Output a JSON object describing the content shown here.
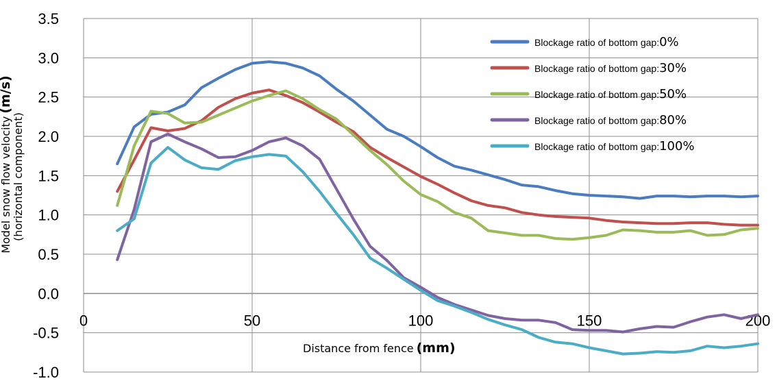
{
  "chart_data": {
    "type": "line",
    "title": "",
    "xlabel": "Distance from fence",
    "xlabel_unit": "(mm)",
    "ylabel": "Model snow flow velocity",
    "ylabel_line2": "(horizontal component)",
    "ylabel_unit": "(m/s)",
    "xlim": [
      0,
      200
    ],
    "ylim": [
      -1.0,
      3.5
    ],
    "xticks": [
      "0",
      "50",
      "100",
      "150",
      "200"
    ],
    "yticks": [
      "3.5",
      "3.0",
      "2.5",
      "2.0",
      "1.5",
      "1.0",
      "0.5",
      "0.0",
      "-0.5",
      "-1.0"
    ],
    "grid": true,
    "legend_position": "top-right",
    "x": [
      10,
      15,
      20,
      25,
      30,
      35,
      40,
      45,
      50,
      55,
      60,
      65,
      70,
      75,
      80,
      85,
      90,
      95,
      100,
      105,
      110,
      115,
      120,
      125,
      130,
      135,
      140,
      145,
      150,
      155,
      160,
      165,
      170,
      175,
      180,
      185,
      190,
      195,
      200
    ],
    "series": [
      {
        "name": "Blockage ratio of bottom gap:",
        "pct": "0%",
        "color": "#4a7cc0",
        "values": [
          1.65,
          2.12,
          2.28,
          2.31,
          2.4,
          2.62,
          2.74,
          2.85,
          2.93,
          2.95,
          2.93,
          2.87,
          2.77,
          2.6,
          2.45,
          2.27,
          2.09,
          2.0,
          1.87,
          1.73,
          1.62,
          1.57,
          1.51,
          1.45,
          1.38,
          1.36,
          1.31,
          1.27,
          1.25,
          1.24,
          1.23,
          1.21,
          1.24,
          1.24,
          1.23,
          1.24,
          1.24,
          1.23,
          1.24
        ]
      },
      {
        "name": "Blockage ratio of bottom gap:",
        "pct": "30%",
        "color": "#c0504d",
        "values": [
          1.3,
          1.7,
          2.11,
          2.07,
          2.1,
          2.2,
          2.37,
          2.48,
          2.55,
          2.59,
          2.52,
          2.43,
          2.31,
          2.18,
          2.06,
          1.86,
          1.73,
          1.61,
          1.49,
          1.39,
          1.28,
          1.18,
          1.12,
          1.09,
          1.03,
          1.0,
          0.98,
          0.97,
          0.96,
          0.93,
          0.91,
          0.9,
          0.89,
          0.89,
          0.9,
          0.9,
          0.88,
          0.87,
          0.87
        ]
      },
      {
        "name": "Blockage ratio of bottom gap:",
        "pct": "50%",
        "color": "#9bbb59",
        "values": [
          1.12,
          1.88,
          2.32,
          2.29,
          2.17,
          2.18,
          2.27,
          2.36,
          2.45,
          2.52,
          2.58,
          2.48,
          2.34,
          2.22,
          2.02,
          1.82,
          1.64,
          1.43,
          1.26,
          1.17,
          1.03,
          0.96,
          0.8,
          0.77,
          0.74,
          0.74,
          0.7,
          0.69,
          0.71,
          0.74,
          0.81,
          0.8,
          0.78,
          0.78,
          0.8,
          0.74,
          0.75,
          0.81,
          0.83
        ]
      },
      {
        "name": "Blockage ratio of bottom gap:",
        "pct": "80%",
        "color": "#8064a2",
        "values": [
          0.43,
          1.07,
          1.93,
          2.03,
          1.93,
          1.84,
          1.73,
          1.74,
          1.82,
          1.93,
          1.98,
          1.88,
          1.71,
          1.33,
          0.95,
          0.6,
          0.42,
          0.2,
          0.08,
          -0.05,
          -0.14,
          -0.21,
          -0.28,
          -0.32,
          -0.34,
          -0.34,
          -0.37,
          -0.46,
          -0.47,
          -0.47,
          -0.49,
          -0.45,
          -0.42,
          -0.43,
          -0.36,
          -0.3,
          -0.27,
          -0.32,
          -0.27
        ]
      },
      {
        "name": "Blockage ratio of bottom gap:",
        "pct": "100%",
        "color": "#4bacc6",
        "values": [
          0.8,
          0.95,
          1.66,
          1.86,
          1.7,
          1.6,
          1.58,
          1.69,
          1.74,
          1.77,
          1.75,
          1.55,
          1.3,
          1.02,
          0.75,
          0.45,
          0.32,
          0.18,
          0.04,
          -0.09,
          -0.16,
          -0.24,
          -0.33,
          -0.4,
          -0.46,
          -0.56,
          -0.62,
          -0.64,
          -0.69,
          -0.73,
          -0.77,
          -0.76,
          -0.74,
          -0.75,
          -0.73,
          -0.67,
          -0.69,
          -0.67,
          -0.64
        ]
      }
    ]
  }
}
